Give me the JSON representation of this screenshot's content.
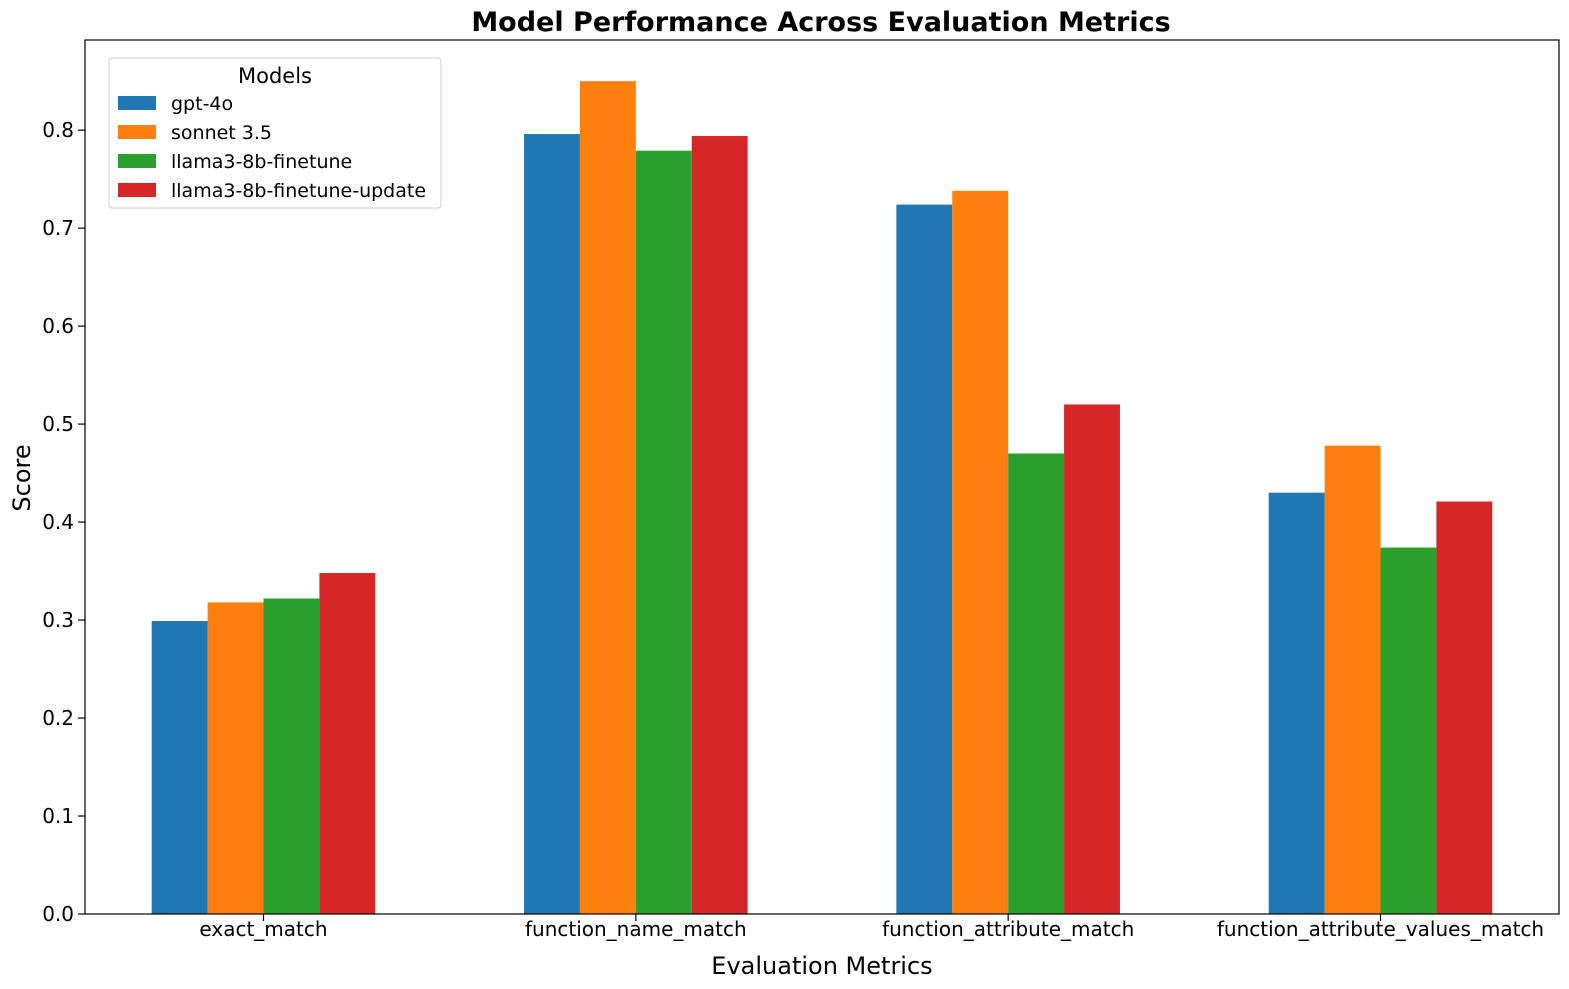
{
  "chart_data": {
    "type": "bar",
    "title": "Model Performance Across Evaluation Metrics",
    "xlabel": "Evaluation Metrics",
    "ylabel": "Score",
    "categories": [
      "exact_match",
      "function_name_match",
      "function_attribute_match",
      "function_attribute_values_match"
    ],
    "series": [
      {
        "name": "gpt-4o",
        "color": "#1f77b4",
        "values": [
          0.299,
          0.796,
          0.724,
          0.43
        ]
      },
      {
        "name": "sonnet 3.5",
        "color": "#ff7f0e",
        "values": [
          0.318,
          0.85,
          0.738,
          0.478
        ]
      },
      {
        "name": "llama3-8b-finetune",
        "color": "#2ca02c",
        "values": [
          0.322,
          0.779,
          0.47,
          0.374
        ]
      },
      {
        "name": "llama3-8b-finetune-update",
        "color": "#d62728",
        "values": [
          0.348,
          0.794,
          0.52,
          0.421
        ]
      }
    ],
    "ylim": [
      0,
      0.892
    ],
    "yticks": [
      "0.0",
      "0.1",
      "0.2",
      "0.3",
      "0.4",
      "0.5",
      "0.6",
      "0.7",
      "0.8"
    ],
    "legend": {
      "title": "Models",
      "placement": "upper-left"
    },
    "grid": false
  }
}
